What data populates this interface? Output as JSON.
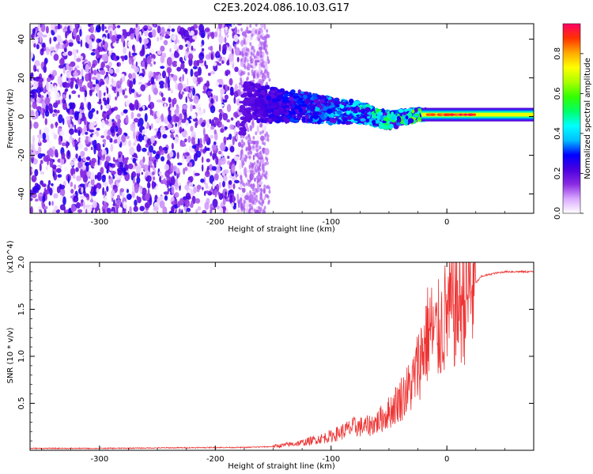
{
  "title": "C2E3.2024.086.10.03.G17",
  "chart_data": [
    {
      "type": "heatmap",
      "xlabel": "Height of straight line (km)",
      "ylabel": "Frequency (Hz)",
      "xlim": [
        -360,
        75
      ],
      "ylim": [
        -50,
        48
      ],
      "xticks": [
        -300,
        -200,
        -100,
        0
      ],
      "yticks": [
        -40,
        -20,
        0,
        20,
        40
      ],
      "colorbar": {
        "label": "Normalized spectral amplitude",
        "range": [
          0,
          0.95
        ],
        "ticks": [
          0.0,
          0.2,
          0.4,
          0.6,
          0.8
        ],
        "colormap": [
          "#ffffff",
          "#d9a8ff",
          "#8a2be2",
          "#4b00e0",
          "#0000ff",
          "#00bfff",
          "#00ffff",
          "#00ff66",
          "#33ff00",
          "#aaff00",
          "#ffff00",
          "#ffaa00",
          "#ff3300",
          "#ff0066"
        ]
      },
      "band_center_hz": [
        {
          "x": -175,
          "y": 8
        },
        {
          "x": -150,
          "y": 6
        },
        {
          "x": -125,
          "y": 5
        },
        {
          "x": -100,
          "y": 3
        },
        {
          "x": -75,
          "y": 2
        },
        {
          "x": -50,
          "y": -2
        },
        {
          "x": -25,
          "y": 1
        },
        {
          "x": 0,
          "y": 1
        },
        {
          "x": 25,
          "y": 1
        },
        {
          "x": 75,
          "y": 1
        }
      ]
    },
    {
      "type": "line",
      "xlabel": "Height of straight line (km)",
      "ylabel": "SNR (10 * v/v)",
      "yscale_label": "(x10^4)",
      "xlim": [
        -360,
        75
      ],
      "ylim": [
        0,
        2.0
      ],
      "xticks": [
        -300,
        -200,
        -100,
        0
      ],
      "yticks": [
        0.5,
        1.0,
        1.5,
        2.0
      ],
      "color": "#ee3333",
      "series": [
        {
          "x": [
            -360,
            -300,
            -250,
            -200,
            -175,
            -150,
            -125,
            -100,
            -90,
            -80,
            -70,
            -60,
            -50,
            -40,
            -30,
            -20,
            -15,
            -10,
            -5,
            0,
            10,
            20,
            25,
            30,
            40,
            50,
            60,
            75
          ],
          "y": [
            0.02,
            0.02,
            0.025,
            0.03,
            0.03,
            0.04,
            0.08,
            0.15,
            0.2,
            0.25,
            0.25,
            0.3,
            0.4,
            0.55,
            0.7,
            1.1,
            1.3,
            1.2,
            1.3,
            1.45,
            1.55,
            1.7,
            1.78,
            1.85,
            1.88,
            1.9,
            1.9,
            1.9
          ]
        }
      ]
    }
  ],
  "colors": {
    "line": "#ee3333",
    "axis": "#000000"
  }
}
